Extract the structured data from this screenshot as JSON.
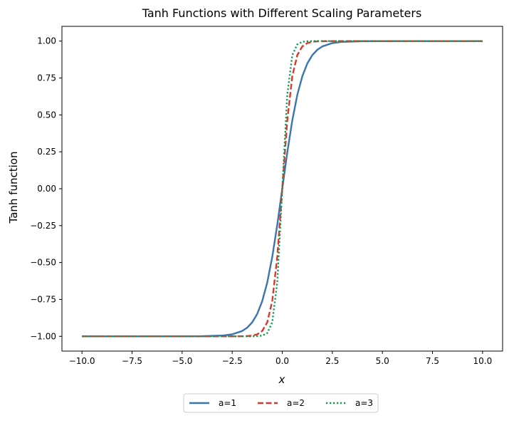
{
  "chart_data": {
    "type": "line",
    "title": "Tanh Functions with Different Scaling Parameters",
    "xlabel": "x",
    "ylabel": "Tanh function",
    "xlim": [
      -11.0,
      11.0
    ],
    "ylim": [
      -1.1,
      1.1
    ],
    "xticks": [
      -10.0,
      -7.5,
      -5.0,
      -2.5,
      0.0,
      2.5,
      5.0,
      7.5,
      10.0
    ],
    "xtick_labels": [
      "−10.0",
      "−7.5",
      "−5.0",
      "−2.5",
      "0.0",
      "2.5",
      "5.0",
      "7.5",
      "10.0"
    ],
    "yticks": [
      -1.0,
      -0.75,
      -0.5,
      -0.25,
      0.0,
      0.25,
      0.5,
      0.75,
      1.0
    ],
    "ytick_labels": [
      "−1.00",
      "−0.75",
      "−0.50",
      "−0.25",
      "0.00",
      "0.25",
      "0.50",
      "0.75",
      "1.00"
    ],
    "grid": false,
    "legend_position": "bottom-center",
    "x": [
      -10,
      -9,
      -8,
      -7,
      -6,
      -5,
      -4,
      -3,
      -2.5,
      -2,
      -1.75,
      -1.5,
      -1.25,
      -1,
      -0.75,
      -0.5,
      -0.25,
      0,
      0.25,
      0.5,
      0.75,
      1,
      1.25,
      1.5,
      1.75,
      2,
      2.5,
      3,
      4,
      5,
      6,
      7,
      8,
      9,
      10
    ],
    "series": [
      {
        "name": "a=1",
        "color": "#3a75b0",
        "style": "solid",
        "values": [
          -1.0,
          -1.0,
          -1.0,
          -1.0,
          -1.0,
          -0.9999,
          -0.9993,
          -0.9951,
          -0.9866,
          -0.964,
          -0.9414,
          -0.9051,
          -0.8483,
          -0.7616,
          -0.6351,
          -0.4621,
          -0.2449,
          0.0,
          0.2449,
          0.4621,
          0.6351,
          0.7616,
          0.8483,
          0.9051,
          0.9414,
          0.964,
          0.9866,
          0.9951,
          0.9993,
          0.9999,
          1.0,
          1.0,
          1.0,
          1.0,
          1.0
        ]
      },
      {
        "name": "a=2",
        "color": "#e0352b",
        "style": "dashed",
        "values": [
          -1.0,
          -1.0,
          -1.0,
          -1.0,
          -1.0,
          -1.0,
          -1.0,
          -1.0,
          -1.0,
          -0.9993,
          -0.9982,
          -0.9951,
          -0.9866,
          -0.964,
          -0.9051,
          -0.7616,
          -0.4621,
          0.0,
          0.4621,
          0.7616,
          0.9051,
          0.964,
          0.9866,
          0.9951,
          0.9982,
          0.9993,
          1.0,
          1.0,
          1.0,
          1.0,
          1.0,
          1.0,
          1.0,
          1.0,
          1.0
        ]
      },
      {
        "name": "a=3",
        "color": "#0e9a52",
        "style": "dotted",
        "values": [
          -1.0,
          -1.0,
          -1.0,
          -1.0,
          -1.0,
          -1.0,
          -1.0,
          -1.0,
          -1.0,
          -1.0,
          -1.0,
          -0.9998,
          -0.9988,
          -0.9951,
          -0.978,
          -0.9051,
          -0.6351,
          0.0,
          0.6351,
          0.9051,
          0.978,
          0.9951,
          0.9988,
          0.9998,
          1.0,
          1.0,
          1.0,
          1.0,
          1.0,
          1.0,
          1.0,
          1.0,
          1.0,
          1.0,
          1.0
        ]
      }
    ]
  }
}
